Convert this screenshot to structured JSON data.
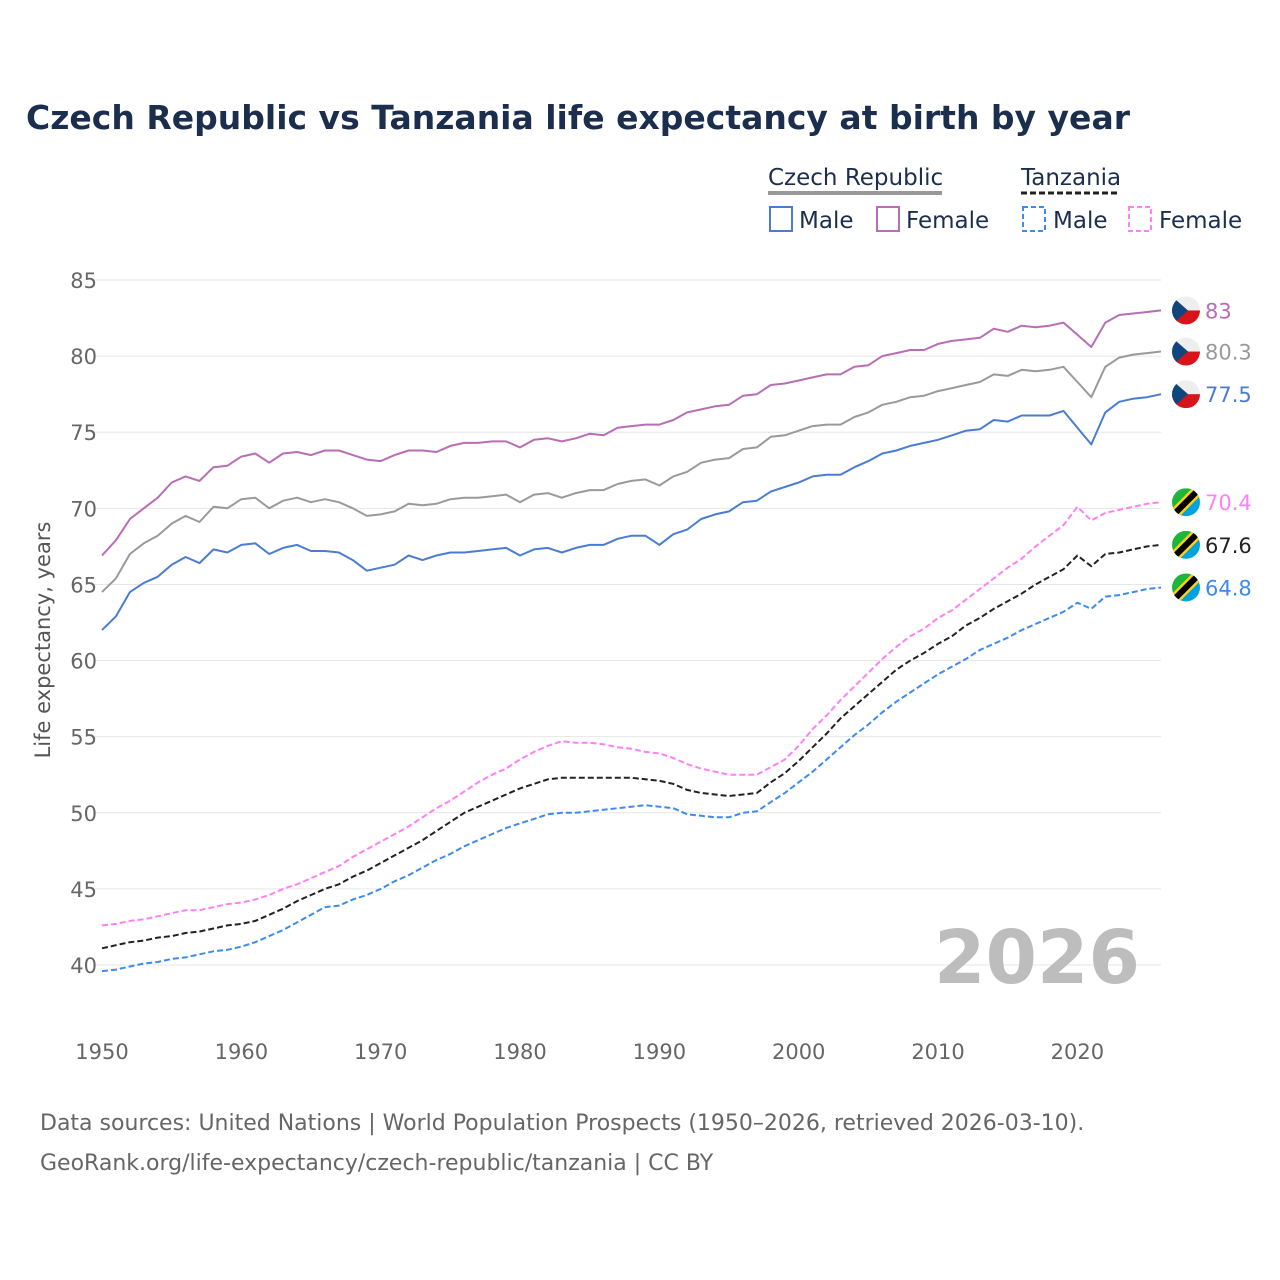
{
  "chart_data": {
    "type": "line",
    "title": "Czech Republic vs Tanzania life expectancy at birth by year",
    "ylabel": "Life expectancy, years",
    "xlabel": "",
    "xlim": [
      1950,
      2026
    ],
    "ylim": [
      37,
      85
    ],
    "x_ticks": [
      1950,
      1960,
      1970,
      1980,
      1990,
      2000,
      2010,
      2020
    ],
    "y_ticks": [
      40,
      45,
      50,
      55,
      60,
      65,
      70,
      75,
      80,
      85
    ],
    "grid": true,
    "watermark_year": "2026",
    "legend": {
      "placement": "top-right",
      "groups": [
        {
          "name": "Czech Republic",
          "items": [
            "Male",
            "Female"
          ]
        },
        {
          "name": "Tanzania",
          "items": [
            "Male",
            "Female"
          ]
        }
      ]
    },
    "x_start": 1950,
    "series": [
      {
        "name": "Czech Republic Female",
        "country": "cz",
        "color": "#b86db5",
        "dashed": false,
        "end_label": "83",
        "values": [
          66.9,
          67.9,
          69.3,
          70.0,
          70.7,
          71.7,
          72.1,
          71.8,
          72.7,
          72.8,
          73.4,
          73.6,
          73.0,
          73.6,
          73.7,
          73.5,
          73.8,
          73.8,
          73.5,
          73.2,
          73.1,
          73.5,
          73.8,
          73.8,
          73.7,
          74.1,
          74.3,
          74.3,
          74.4,
          74.4,
          74.0,
          74.5,
          74.6,
          74.4,
          74.6,
          74.9,
          74.8,
          75.3,
          75.4,
          75.5,
          75.5,
          75.8,
          76.3,
          76.5,
          76.7,
          76.8,
          77.4,
          77.5,
          78.1,
          78.2,
          78.4,
          78.6,
          78.8,
          78.8,
          79.3,
          79.4,
          80.0,
          80.2,
          80.4,
          80.4,
          80.8,
          81.0,
          81.1,
          81.2,
          81.8,
          81.6,
          82.0,
          81.9,
          82.0,
          82.2,
          81.4,
          80.6,
          82.2,
          82.7,
          82.8,
          82.9,
          83.0
        ]
      },
      {
        "name": "Czech Republic Total",
        "country": "cz",
        "color": "#9a9a9a",
        "dashed": false,
        "end_label": "80.3",
        "values": [
          64.5,
          65.4,
          67.0,
          67.7,
          68.2,
          69.0,
          69.5,
          69.1,
          70.1,
          70.0,
          70.6,
          70.7,
          70.0,
          70.5,
          70.7,
          70.4,
          70.6,
          70.4,
          70.0,
          69.5,
          69.6,
          69.8,
          70.3,
          70.2,
          70.3,
          70.6,
          70.7,
          70.7,
          70.8,
          70.9,
          70.4,
          70.9,
          71.0,
          70.7,
          71.0,
          71.2,
          71.2,
          71.6,
          71.8,
          71.9,
          71.5,
          72.1,
          72.4,
          73.0,
          73.2,
          73.3,
          73.9,
          74.0,
          74.7,
          74.8,
          75.1,
          75.4,
          75.5,
          75.5,
          76.0,
          76.3,
          76.8,
          77.0,
          77.3,
          77.4,
          77.7,
          77.9,
          78.1,
          78.3,
          78.8,
          78.7,
          79.1,
          79.0,
          79.1,
          79.3,
          78.3,
          77.3,
          79.3,
          79.9,
          80.1,
          80.2,
          80.3
        ]
      },
      {
        "name": "Czech Republic Male",
        "country": "cz",
        "color": "#4a7dd1",
        "dashed": false,
        "end_label": "77.5",
        "values": [
          62.0,
          62.9,
          64.5,
          65.1,
          65.5,
          66.3,
          66.8,
          66.4,
          67.3,
          67.1,
          67.6,
          67.7,
          67.0,
          67.4,
          67.6,
          67.2,
          67.2,
          67.1,
          66.6,
          65.9,
          66.1,
          66.3,
          66.9,
          66.6,
          66.9,
          67.1,
          67.1,
          67.2,
          67.3,
          67.4,
          66.9,
          67.3,
          67.4,
          67.1,
          67.4,
          67.6,
          67.6,
          68.0,
          68.2,
          68.2,
          67.6,
          68.3,
          68.6,
          69.3,
          69.6,
          69.8,
          70.4,
          70.5,
          71.1,
          71.4,
          71.7,
          72.1,
          72.2,
          72.2,
          72.7,
          73.1,
          73.6,
          73.8,
          74.1,
          74.3,
          74.5,
          74.8,
          75.1,
          75.2,
          75.8,
          75.7,
          76.1,
          76.1,
          76.1,
          76.4,
          75.3,
          74.2,
          76.3,
          77.0,
          77.2,
          77.3,
          77.5
        ]
      },
      {
        "name": "Tanzania Female",
        "country": "tz",
        "color": "#ff80f5",
        "dashed": true,
        "end_label": "70.4",
        "values": [
          42.6,
          42.7,
          42.9,
          43.0,
          43.2,
          43.4,
          43.6,
          43.6,
          43.8,
          44.0,
          44.1,
          44.3,
          44.6,
          45.0,
          45.3,
          45.7,
          46.1,
          46.5,
          47.1,
          47.6,
          48.1,
          48.6,
          49.1,
          49.7,
          50.3,
          50.8,
          51.4,
          52.0,
          52.5,
          52.9,
          53.5,
          54.0,
          54.4,
          54.7,
          54.6,
          54.6,
          54.5,
          54.3,
          54.2,
          54.0,
          53.9,
          53.6,
          53.2,
          52.9,
          52.7,
          52.5,
          52.5,
          52.5,
          53.0,
          53.5,
          54.4,
          55.5,
          56.4,
          57.4,
          58.3,
          59.2,
          60.1,
          60.9,
          61.6,
          62.1,
          62.8,
          63.3,
          64.0,
          64.7,
          65.4,
          66.1,
          66.7,
          67.5,
          68.2,
          68.9,
          70.1,
          69.2,
          69.7,
          69.9,
          70.1,
          70.3,
          70.4
        ]
      },
      {
        "name": "Tanzania Total",
        "country": "tz",
        "color": "#222222",
        "dashed": true,
        "end_label": "67.6",
        "values": [
          41.1,
          41.3,
          41.5,
          41.6,
          41.8,
          41.9,
          42.1,
          42.2,
          42.4,
          42.6,
          42.7,
          42.9,
          43.3,
          43.7,
          44.2,
          44.6,
          45.0,
          45.3,
          45.8,
          46.2,
          46.7,
          47.2,
          47.7,
          48.2,
          48.8,
          49.4,
          50.0,
          50.4,
          50.8,
          51.2,
          51.6,
          51.9,
          52.2,
          52.3,
          52.3,
          52.3,
          52.3,
          52.3,
          52.3,
          52.2,
          52.1,
          51.9,
          51.5,
          51.3,
          51.2,
          51.1,
          51.2,
          51.3,
          52.0,
          52.6,
          53.4,
          54.3,
          55.2,
          56.2,
          57.0,
          57.8,
          58.6,
          59.4,
          60.0,
          60.5,
          61.1,
          61.6,
          62.3,
          62.8,
          63.4,
          63.9,
          64.4,
          65.0,
          65.5,
          66.0,
          66.9,
          66.2,
          67.0,
          67.1,
          67.3,
          67.5,
          67.6
        ]
      },
      {
        "name": "Tanzania Male",
        "country": "tz",
        "color": "#3d8bf0",
        "dashed": true,
        "end_label": "64.8",
        "values": [
          39.6,
          39.7,
          39.9,
          40.1,
          40.2,
          40.4,
          40.5,
          40.7,
          40.9,
          41.0,
          41.2,
          41.5,
          41.9,
          42.3,
          42.8,
          43.3,
          43.8,
          43.9,
          44.3,
          44.6,
          45.0,
          45.5,
          45.9,
          46.4,
          46.9,
          47.3,
          47.8,
          48.2,
          48.6,
          49.0,
          49.3,
          49.6,
          49.9,
          50.0,
          50.0,
          50.1,
          50.2,
          50.3,
          50.4,
          50.5,
          50.4,
          50.3,
          49.9,
          49.8,
          49.7,
          49.7,
          50.0,
          50.1,
          50.7,
          51.3,
          52.0,
          52.7,
          53.5,
          54.3,
          55.1,
          55.8,
          56.6,
          57.3,
          57.9,
          58.5,
          59.1,
          59.6,
          60.1,
          60.7,
          61.1,
          61.5,
          62.0,
          62.4,
          62.8,
          63.2,
          63.8,
          63.4,
          64.2,
          64.3,
          64.5,
          64.7,
          64.8
        ]
      }
    ]
  },
  "footer": {
    "source_line1": "Data sources: United Nations | World Population Prospects (1950–2026, retrieved 2026-03-10).",
    "source_line2": "GeoRank.org/life-expectancy/czech-republic/tanzania | CC BY"
  }
}
